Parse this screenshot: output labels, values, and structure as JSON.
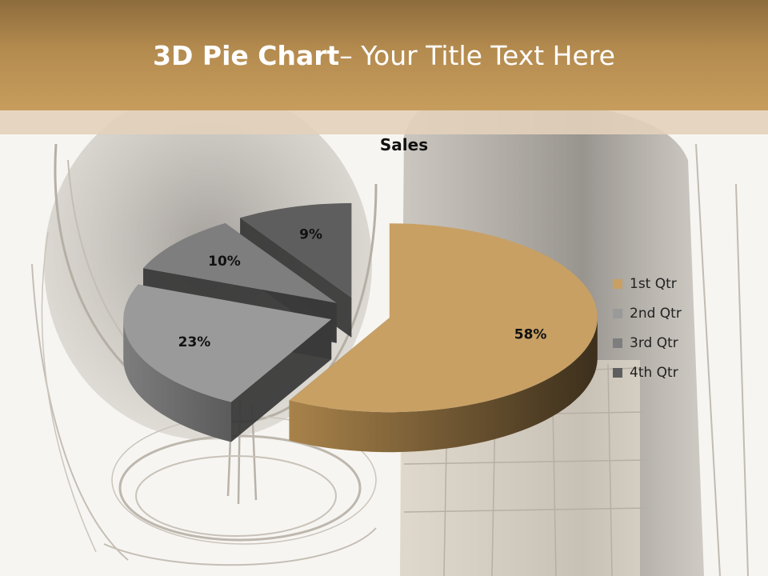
{
  "slide": {
    "title_bold": "3D Pie Chart",
    "title_rest": "– Your Title Text Here"
  },
  "chart_data": {
    "type": "pie",
    "title": "Sales",
    "categories": [
      "1st Qtr",
      "2nd Qtr",
      "3rd Qtr",
      "4th Qtr"
    ],
    "values": [
      58,
      23,
      10,
      9
    ],
    "data_labels": [
      "58%",
      "23%",
      "10%",
      "9%"
    ],
    "legend_position": "right",
    "colors": {
      "1st Qtr": "#c8a064",
      "2nd Qtr": "#9a9a9a",
      "3rd Qtr": "#7e7e7e",
      "4th Qtr": "#5e5e5e"
    },
    "exploded": true,
    "three_d": true
  }
}
